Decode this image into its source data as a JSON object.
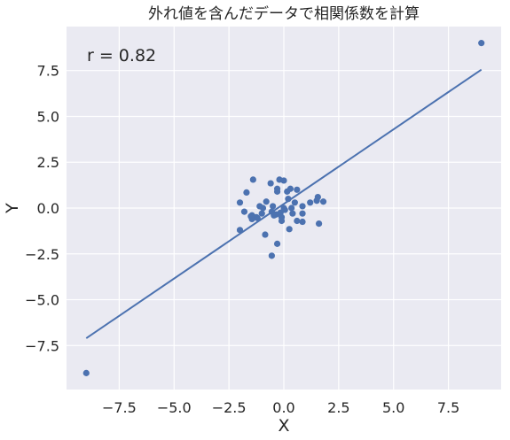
{
  "chart_data": {
    "type": "scatter",
    "title": "外れ値を含んだデータで相関係数を計算",
    "xlabel": "X",
    "ylabel": "Y",
    "xlim": [
      -9.9,
      9.9
    ],
    "ylim": [
      -9.9,
      9.9
    ],
    "xticks": [
      -7.5,
      -5.0,
      -2.5,
      0.0,
      2.5,
      5.0,
      7.5
    ],
    "yticks": [
      -7.5,
      -5.0,
      -2.5,
      0.0,
      2.5,
      5.0,
      7.5
    ],
    "xtick_labels": [
      "−7.5",
      "−5.0",
      "−2.5",
      "0.0",
      "2.5",
      "5.0",
      "7.5"
    ],
    "ytick_labels": [
      "−7.5",
      "−5.0",
      "−2.5",
      "0.0",
      "2.5",
      "5.0",
      "7.5"
    ],
    "grid": true,
    "annotation": "r = 0.82",
    "colors": {
      "background": "#eaeaf2",
      "grid": "#ffffff",
      "points": "#4c72b0",
      "line": "#4c72b0"
    },
    "fit_line": {
      "x": [
        -9.0,
        9.0
      ],
      "y": [
        -7.1,
        7.55
      ]
    },
    "points": [
      {
        "x": -9.0,
        "y": -9.0
      },
      {
        "x": 9.0,
        "y": 9.0
      },
      {
        "x": -1.4,
        "y": 1.55
      },
      {
        "x": -0.2,
        "y": 1.55
      },
      {
        "x": 0.0,
        "y": 1.5
      },
      {
        "x": -0.6,
        "y": 1.35
      },
      {
        "x": -0.3,
        "y": 1.05
      },
      {
        "x": 0.3,
        "y": 1.05
      },
      {
        "x": 0.15,
        "y": 0.9
      },
      {
        "x": 0.6,
        "y": 1.0
      },
      {
        "x": -1.7,
        "y": 0.85
      },
      {
        "x": -0.3,
        "y": 0.9
      },
      {
        "x": 0.2,
        "y": 0.5
      },
      {
        "x": 1.55,
        "y": 0.6
      },
      {
        "x": -2.0,
        "y": 0.3
      },
      {
        "x": -0.8,
        "y": 0.35
      },
      {
        "x": 0.5,
        "y": 0.3
      },
      {
        "x": 1.2,
        "y": 0.3
      },
      {
        "x": 1.5,
        "y": 0.4
      },
      {
        "x": 1.8,
        "y": 0.35
      },
      {
        "x": -1.1,
        "y": 0.1
      },
      {
        "x": -0.95,
        "y": 0.0
      },
      {
        "x": -0.5,
        "y": 0.1
      },
      {
        "x": 0.0,
        "y": 0.0
      },
      {
        "x": 0.35,
        "y": 0.0
      },
      {
        "x": 0.85,
        "y": 0.1
      },
      {
        "x": -1.8,
        "y": -0.2
      },
      {
        "x": -1.0,
        "y": -0.3
      },
      {
        "x": -0.55,
        "y": -0.2
      },
      {
        "x": -0.15,
        "y": -0.25
      },
      {
        "x": 0.4,
        "y": -0.3
      },
      {
        "x": 0.85,
        "y": -0.3
      },
      {
        "x": -1.45,
        "y": -0.4
      },
      {
        "x": -1.25,
        "y": -0.5
      },
      {
        "x": -0.45,
        "y": -0.4
      },
      {
        "x": -0.35,
        "y": -0.35
      },
      {
        "x": -1.45,
        "y": -0.6
      },
      {
        "x": -1.2,
        "y": -0.55
      },
      {
        "x": -0.1,
        "y": -0.5
      },
      {
        "x": -0.1,
        "y": -0.7
      },
      {
        "x": 0.6,
        "y": -0.7
      },
      {
        "x": 0.85,
        "y": -0.75
      },
      {
        "x": 1.6,
        "y": -0.85
      },
      {
        "x": -2.0,
        "y": -1.2
      },
      {
        "x": 0.25,
        "y": -1.15
      },
      {
        "x": -0.85,
        "y": -1.45
      },
      {
        "x": -0.3,
        "y": -1.95
      },
      {
        "x": -0.55,
        "y": -2.6
      },
      {
        "x": -1.5,
        "y": -0.45
      },
      {
        "x": 0.05,
        "y": -0.1
      }
    ]
  }
}
